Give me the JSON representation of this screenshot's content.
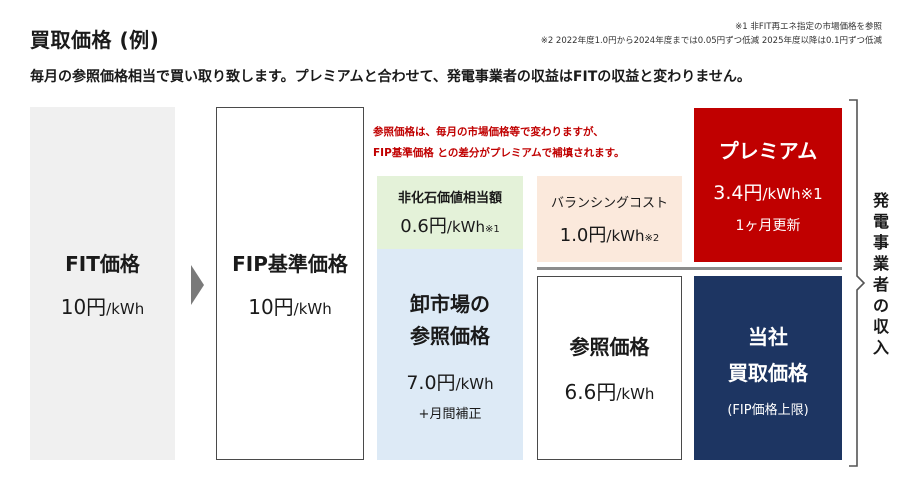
{
  "title": "買取価格 (例)",
  "notes": {
    "note1": "※1 非FIT再エネ指定の市場価格を参照",
    "note2": "※2 2022年度1.0円から2024年度までは0.05円ずつ低減 2025年度以降は0.1円ずつ低減"
  },
  "subtitle": "毎月の参照価格相当で買い取り致します。プレミアムと合わせて、発電事業者の収益はFITの収益と変わりません。",
  "unit": "/kWh",
  "fit": {
    "label": "FIT価格",
    "value": "10円"
  },
  "fip": {
    "label": "FIP基準価格",
    "value": "10円"
  },
  "red_note": {
    "line1": "参照価格は、毎月の市場価格等で変わりますが、",
    "line2": "FIP基準価格 との差分がプレミアムで補填されます。"
  },
  "nonfossil": {
    "label": "非化石価値相当額",
    "value": "0.6円",
    "note": "※1"
  },
  "balancing": {
    "label": "バランシングコスト",
    "value": "1.0円",
    "note": "※2"
  },
  "wholesale": {
    "line1": "卸市場の",
    "line2": "参照価格",
    "value": "7.0円",
    "sub": "+月間補正"
  },
  "reference": {
    "label": "参照価格",
    "value": "6.6円"
  },
  "premium": {
    "label": "プレミアム",
    "value": "3.4円",
    "note": "※1",
    "sub": "1ヶ月更新"
  },
  "company": {
    "line1": "当社",
    "line2": "買取価格",
    "sub": "(FIP価格上限)"
  },
  "side_label": [
    "発",
    "電",
    "事",
    "業",
    "者",
    "の",
    "収",
    "入"
  ],
  "colors": {
    "red": "#c00000",
    "navy": "#1d3562",
    "green_bg": "#e4f2d9",
    "orange_bg": "#fbe9dc",
    "blue_bg": "#ddeaf6",
    "gray_bg": "#f0f0f0"
  }
}
